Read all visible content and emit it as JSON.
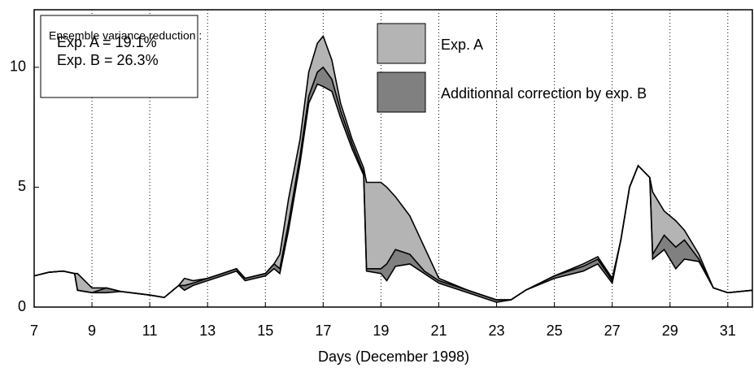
{
  "chart_data": {
    "type": "band-line",
    "x_label": "Days (December 1998)",
    "annotations": [
      "Ensemble variance reduction :",
      "Exp. A = 19.1%",
      "Exp. B = 26.3%"
    ],
    "x": [
      7,
      7.5,
      8,
      8.4,
      8.5,
      9,
      9.5,
      10,
      11,
      11.5,
      12,
      12.2,
      12.5,
      13,
      13.5,
      14,
      14.3,
      15,
      15.3,
      15.5,
      15.8,
      16.2,
      16.5,
      16.8,
      17,
      17.3,
      17.6,
      18,
      18.4,
      18.5,
      19,
      19.2,
      19.5,
      20,
      20.5,
      21,
      22,
      23,
      23.5,
      24,
      25,
      26,
      26.5,
      27,
      27.3,
      27.6,
      27.9,
      28.3,
      28.4,
      28.8,
      29.2,
      29.5,
      30,
      30.5,
      31,
      31.85
    ],
    "series": [
      {
        "color": "#000000",
        "values": [
          1.3,
          1.45,
          1.5,
          1.4,
          1.4,
          0.8,
          0.8,
          0.65,
          0.5,
          0.4,
          0.9,
          1.2,
          1.1,
          1.2,
          1.4,
          1.6,
          1.2,
          1.4,
          1.8,
          2.2,
          4.5,
          7.0,
          9.8,
          11.0,
          11.3,
          10.3,
          8.5,
          7.0,
          5.8,
          5.2,
          5.2,
          5.0,
          4.6,
          3.8,
          2.5,
          1.2,
          0.7,
          0.3,
          0.3,
          0.7,
          1.3,
          1.8,
          2.1,
          1.2,
          2.8,
          5.0,
          5.9,
          5.4,
          4.8,
          4.0,
          3.6,
          3.2,
          2.2,
          0.8,
          0.6,
          0.7
        ]
      },
      {
        "name": "Exp. A",
        "color": "#b4b4b4",
        "values": [
          1.3,
          1.45,
          1.5,
          1.4,
          0.7,
          0.6,
          0.8,
          0.65,
          0.5,
          0.4,
          0.9,
          0.9,
          1.0,
          1.2,
          1.4,
          1.6,
          1.2,
          1.4,
          1.8,
          1.6,
          3.5,
          6.3,
          8.8,
          9.8,
          10.0,
          9.5,
          8.2,
          6.8,
          5.6,
          1.6,
          1.6,
          1.8,
          2.4,
          2.2,
          1.5,
          1.1,
          0.7,
          0.3,
          0.3,
          0.7,
          1.3,
          1.7,
          2.0,
          1.1,
          2.8,
          5.0,
          5.9,
          5.4,
          2.2,
          3.0,
          2.5,
          2.8,
          2.0,
          0.8,
          0.6,
          0.7
        ]
      },
      {
        "name": "Additionnal correction by exp. B",
        "color": "#808080",
        "values": [
          1.3,
          1.45,
          1.5,
          1.4,
          0.7,
          0.6,
          0.6,
          0.65,
          0.5,
          0.4,
          0.9,
          0.7,
          0.9,
          1.1,
          1.3,
          1.5,
          1.1,
          1.3,
          1.6,
          1.4,
          3.2,
          6.0,
          8.5,
          9.3,
          9.2,
          9.0,
          7.9,
          6.6,
          5.5,
          1.5,
          1.4,
          1.1,
          1.7,
          1.8,
          1.4,
          1.0,
          0.6,
          0.2,
          0.3,
          0.7,
          1.2,
          1.5,
          1.8,
          1.0,
          2.8,
          5.0,
          5.9,
          5.4,
          2.0,
          2.4,
          1.6,
          2.0,
          1.9,
          0.8,
          0.6,
          0.7
        ]
      }
    ],
    "xlim": [
      7,
      31.85
    ],
    "xticks": [
      7,
      9,
      11,
      13,
      15,
      17,
      19,
      21,
      23,
      25,
      27,
      29,
      31
    ],
    "ylim": [
      0,
      12.4
    ],
    "yticks": [
      0,
      5,
      10
    ],
    "grid": true
  }
}
